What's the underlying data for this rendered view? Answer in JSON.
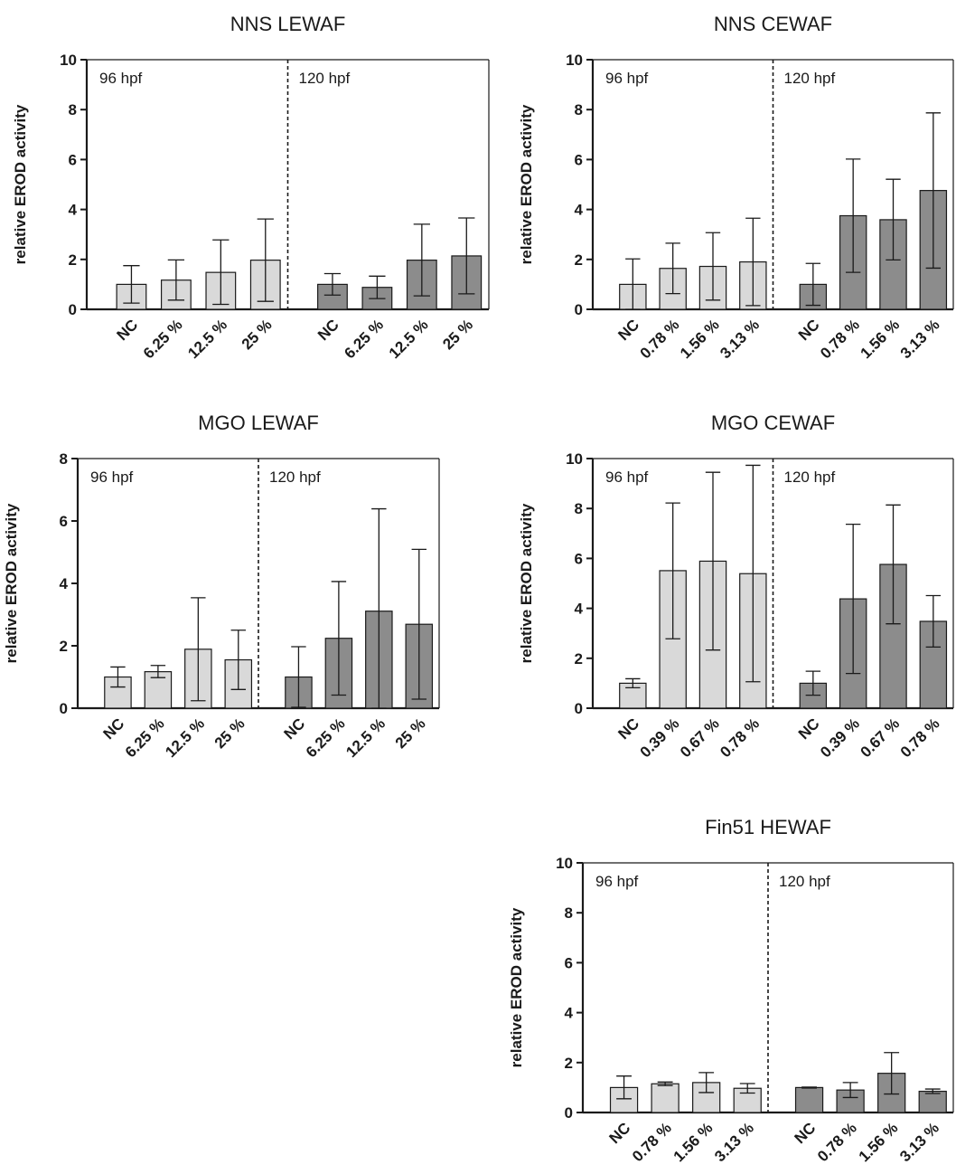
{
  "figure": {
    "colors": {
      "bar_96hpf": "#d9d9d9",
      "bar_120hpf": "#8c8c8c",
      "stroke": "#1a1a1a"
    }
  },
  "chart_data": [
    {
      "type": "bar",
      "title": "NNS LEWAF",
      "ylabel": "relative EROD activity",
      "xlabel": "",
      "ylim": [
        0,
        10
      ],
      "yticks": [
        0,
        2,
        4,
        6,
        8,
        10
      ],
      "legend": "none",
      "grid": false,
      "groups": [
        {
          "label": "96 hpf",
          "color": "#d9d9d9",
          "categories": [
            "NC",
            "6.25 %",
            "12.5 %",
            "25 %"
          ],
          "values": [
            1.0,
            1.17,
            1.48,
            1.97
          ],
          "err_low": [
            0.25,
            0.37,
            0.2,
            0.32
          ],
          "err_high": [
            1.75,
            1.98,
            2.78,
            3.62
          ]
        },
        {
          "label": "120 hpf",
          "color": "#8c8c8c",
          "categories": [
            "NC",
            "6.25 %",
            "12.5 %",
            "25 %"
          ],
          "values": [
            1.0,
            0.88,
            1.97,
            2.14
          ],
          "err_low": [
            0.57,
            0.43,
            0.54,
            0.62
          ],
          "err_high": [
            1.43,
            1.33,
            3.41,
            3.66
          ]
        }
      ]
    },
    {
      "type": "bar",
      "title": "NNS CEWAF",
      "ylabel": "relative EROD activity",
      "xlabel": "",
      "ylim": [
        0,
        10
      ],
      "yticks": [
        0,
        2,
        4,
        6,
        8,
        10
      ],
      "legend": "none",
      "grid": false,
      "groups": [
        {
          "label": "96 hpf",
          "color": "#d9d9d9",
          "categories": [
            "NC",
            "0.78 %",
            "1.56 %",
            "3.13 %"
          ],
          "values": [
            1.0,
            1.64,
            1.72,
            1.9
          ],
          "err_low": [
            0.0,
            0.63,
            0.37,
            0.15
          ],
          "err_high": [
            2.02,
            2.65,
            3.07,
            3.65
          ]
        },
        {
          "label": "120 hpf",
          "color": "#8c8c8c",
          "categories": [
            "NC",
            "0.78 %",
            "1.56 %",
            "3.13 %"
          ],
          "values": [
            1.0,
            3.75,
            3.59,
            4.76
          ],
          "err_low": [
            0.16,
            1.48,
            1.98,
            1.65
          ],
          "err_high": [
            1.84,
            6.02,
            5.21,
            7.87
          ]
        }
      ]
    },
    {
      "type": "bar",
      "title": "MGO LEWAF",
      "ylabel": "relative EROD activity",
      "xlabel": "",
      "ylim": [
        0,
        8
      ],
      "yticks": [
        0,
        2,
        4,
        6,
        8
      ],
      "legend": "none",
      "grid": false,
      "groups": [
        {
          "label": "96 hpf",
          "color": "#d9d9d9",
          "categories": [
            "NC",
            "6.25 %",
            "12.5 %",
            "25 %"
          ],
          "values": [
            1.0,
            1.17,
            1.89,
            1.55
          ],
          "err_low": [
            0.68,
            0.98,
            0.24,
            0.6
          ],
          "err_high": [
            1.32,
            1.37,
            3.54,
            2.5
          ]
        },
        {
          "label": "120 hpf",
          "color": "#8c8c8c",
          "categories": [
            "NC",
            "6.25 %",
            "12.5 %",
            "25 %"
          ],
          "values": [
            1.0,
            2.24,
            3.11,
            2.69
          ],
          "err_low": [
            0.03,
            0.42,
            0.0,
            0.29
          ],
          "err_high": [
            1.97,
            4.06,
            6.39,
            5.09
          ]
        }
      ]
    },
    {
      "type": "bar",
      "title": "MGO CEWAF",
      "ylabel": "relative EROD activity",
      "xlabel": "",
      "ylim": [
        0,
        10
      ],
      "yticks": [
        0,
        2,
        4,
        6,
        8,
        10
      ],
      "legend": "none",
      "grid": false,
      "groups": [
        {
          "label": "96 hpf",
          "color": "#d9d9d9",
          "categories": [
            "NC",
            "0.39 %",
            "0.67 %",
            "0.78 %"
          ],
          "values": [
            1.0,
            5.51,
            5.89,
            5.39
          ],
          "err_low": [
            0.82,
            2.78,
            2.33,
            1.06
          ],
          "err_high": [
            1.18,
            8.22,
            9.45,
            9.73
          ]
        },
        {
          "label": "120 hpf",
          "color": "#8c8c8c",
          "categories": [
            "NC",
            "0.39 %",
            "0.67 %",
            "0.78 %"
          ],
          "values": [
            1.0,
            4.38,
            5.76,
            3.48
          ],
          "err_low": [
            0.52,
            1.39,
            3.38,
            2.45
          ],
          "err_high": [
            1.48,
            7.37,
            8.14,
            4.51
          ]
        }
      ]
    },
    {
      "type": "bar",
      "title": "Fin51 HEWAF",
      "ylabel": "relative EROD activity",
      "xlabel": "",
      "ylim": [
        0,
        10
      ],
      "yticks": [
        0,
        2,
        4,
        6,
        8,
        10
      ],
      "legend": "none",
      "grid": false,
      "groups": [
        {
          "label": "96 hpf",
          "color": "#d9d9d9",
          "categories": [
            "NC",
            "0.78 %",
            "1.56 %",
            "3.13 %"
          ],
          "values": [
            1.0,
            1.15,
            1.2,
            0.97
          ],
          "err_low": [
            0.55,
            1.08,
            0.8,
            0.78
          ],
          "err_high": [
            1.46,
            1.22,
            1.6,
            1.16
          ]
        },
        {
          "label": "120 hpf",
          "color": "#8c8c8c",
          "categories": [
            "NC",
            "0.78 %",
            "1.56 %",
            "3.13 %"
          ],
          "values": [
            1.0,
            0.9,
            1.57,
            0.85
          ],
          "err_low": [
            0.98,
            0.6,
            0.74,
            0.76
          ],
          "err_high": [
            1.02,
            1.2,
            2.4,
            0.94
          ]
        }
      ]
    }
  ]
}
